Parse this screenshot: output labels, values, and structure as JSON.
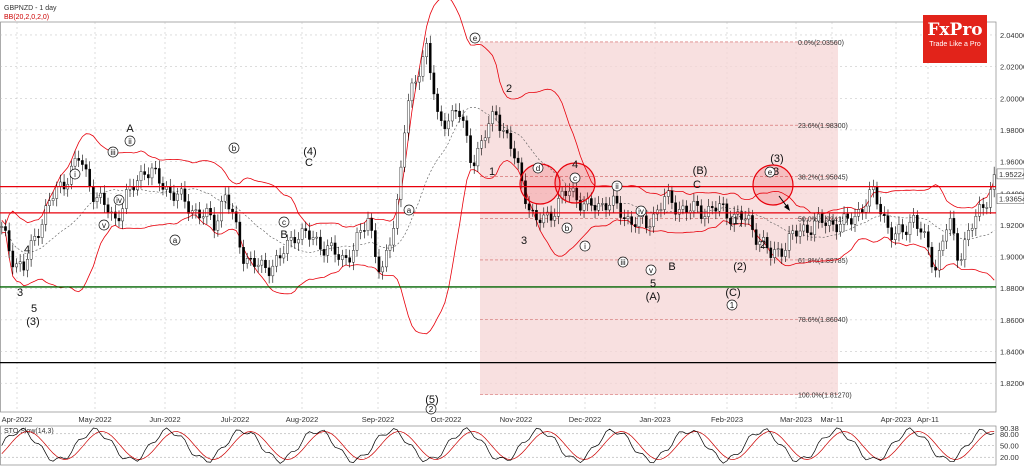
{
  "header": {
    "symbol_label": "GBPNZD - 1 day",
    "bb_label": "BB(20,2,0,2,0)"
  },
  "logo": {
    "name": "FxPro",
    "tagline": "Trade Like a Pro"
  },
  "colors": {
    "resistance": "#e8000b",
    "bands": "#e8000b",
    "support": "#006400",
    "neutral": "#000000",
    "fib_zone": "#f6d5d5",
    "logo": "#e2231a"
  },
  "chart_data": {
    "type": "candlestick",
    "symbol": "GBPNZD",
    "timeframe": "1 day",
    "ylim": [
      1.8018,
      2.0482
    ],
    "y_ticks": [
      1.82,
      1.84,
      1.86,
      1.88,
      1.9,
      1.92,
      1.94,
      1.96,
      1.98,
      2.0,
      2.02,
      2.04
    ],
    "y_tick_labels": [
      "1.82000",
      "1.84000",
      "1.86000",
      "1.88000",
      "1.90000",
      "1.92000",
      "1.94000",
      "1.96000",
      "1.98000",
      "2.00000",
      "2.02000",
      "2.04000"
    ],
    "x_tick_labels": [
      "Apr-2022",
      "May-2022",
      "Jun-2022",
      "Jul-2022",
      "Aug-2022",
      "Sep-2022",
      "Oct-2022",
      "Nov-2022",
      "Dec-2022",
      "Jan-2023",
      "Feb-2023",
      "Mar-2023",
      "Mar-11",
      "Apr-2023",
      "Apr-11"
    ],
    "current_price": "1.93654",
    "price_labels": [
      "1.95224",
      "1.93654"
    ],
    "horizontal_levels": [
      {
        "value": 1.9442,
        "role": "resistance",
        "color": "#e8000b"
      },
      {
        "value": 1.9276,
        "role": "resistance",
        "color": "#e8000b"
      },
      {
        "value": 1.8808,
        "role": "support",
        "color": "#006400"
      },
      {
        "value": 1.833,
        "role": "level",
        "color": "#000000"
      }
    ],
    "fibonacci": [
      {
        "label": "0.0%(2.03560)",
        "value": 2.0356
      },
      {
        "label": "23.6%(1.98300)",
        "value": 1.983
      },
      {
        "label": "38.2%(1.95045)",
        "value": 1.95045
      },
      {
        "label": "50.0%(1.92415)",
        "value": 1.92415
      },
      {
        "label": "61.8%(1.89785)",
        "value": 1.89785
      },
      {
        "label": "78.6%(1.86040)",
        "value": 1.8604
      },
      {
        "label": "100.0%(1.81270)",
        "value": 1.8127
      }
    ],
    "wave_labels": [
      "3",
      "4",
      "5",
      "(3)",
      "A",
      "B",
      "(4)",
      "C",
      "(5)",
      "1",
      "2",
      "3",
      "4",
      "5",
      "(A)",
      "B",
      "(B)",
      "C",
      "(C)",
      "(1)",
      "2",
      "(2)",
      "(3)",
      "3"
    ],
    "wave_labels_circled": [
      "i",
      "ii",
      "iii",
      "iv",
      "v",
      "a",
      "b",
      "c",
      "d",
      "e",
      "i",
      "ii",
      "iii",
      "iv",
      "v",
      "a",
      "b",
      "c",
      "e",
      "1",
      "2"
    ],
    "oscillator": {
      "label": "STO Slow(14,3)",
      "ylim": [
        0,
        100
      ],
      "levels": [
        20,
        50,
        80
      ],
      "level_labels": [
        "90.38",
        "80.00",
        "50.00",
        "20.00"
      ]
    }
  }
}
